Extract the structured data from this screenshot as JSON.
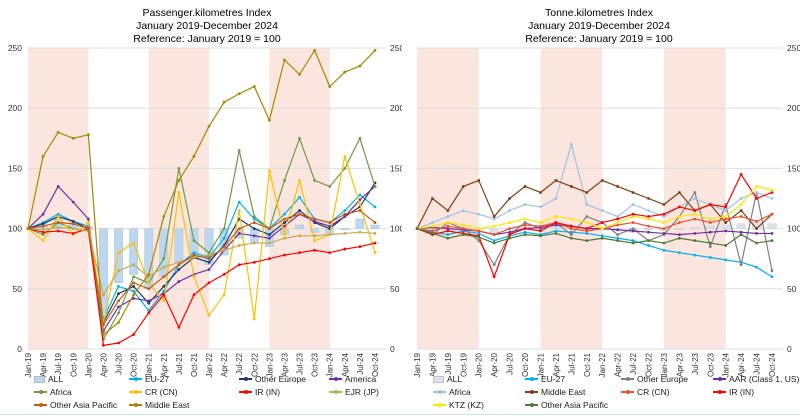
{
  "page": {
    "background": "#FFFFFF"
  },
  "charts": [
    {
      "id": "passenger",
      "title_lines": [
        "Passenger.kilometres Index",
        "January 2019-December 2024",
        "Reference: January 2019 = 100"
      ],
      "chart_data": {
        "type": "line",
        "title": "Passenger.kilometres Index",
        "subtitle": "January 2019-December 2024",
        "reference_note": "Reference: January 2019 = 100",
        "x_tick_labels": [
          "Jan-19",
          "Apr-19",
          "Jul-19",
          "Oct-19",
          "Jan-20",
          "Apr-20",
          "Jul-20",
          "Oct-20",
          "Jan-21",
          "Apr-21",
          "Jul-21",
          "Oct-21",
          "Jan-22",
          "Apr-22",
          "Jul-22",
          "Oct-22",
          "Jan-23",
          "Apr-23",
          "Jul-23",
          "Oct-23",
          "Jan-24",
          "Apr-24",
          "Jul-24",
          "Oct-24"
        ],
        "ylim": [
          0,
          250
        ],
        "yticks": [
          0,
          50,
          100,
          150,
          200,
          250
        ],
        "grid": true,
        "y_axis_label_sides": [
          "left",
          "right"
        ],
        "legend_position": "bottom",
        "shaded_bands": {
          "color": "#FAE6DE",
          "tick_ranges": [
            [
              0,
              4
            ],
            [
              8,
              12
            ],
            [
              16,
              20
            ]
          ],
          "note": "calendar years 2019, 2021, 2023 shaded"
        },
        "baseline": 100,
        "series": [
          {
            "name": "ALL",
            "type": "bar_from_100",
            "color": "#BDD7EE",
            "stroke": "#A6C5E4",
            "values": [
              100,
              104,
              108,
              105,
              102,
              30,
              55,
              62,
              50,
              60,
              72,
              75,
              70,
              78,
              92,
              88,
              85,
              95,
              103,
              97,
              95,
              100,
              108,
              103
            ]
          },
          {
            "name": "EU-27",
            "type": "line",
            "color": "#00B0F0",
            "values": [
              100,
              105,
              112,
              106,
              102,
              25,
              52,
              48,
              32,
              48,
              70,
              80,
              76,
              92,
              122,
              108,
              100,
              112,
              126,
              108,
              105,
              115,
              128,
              118
            ]
          },
          {
            "name": "Other Europe",
            "type": "line",
            "color": "#1F3864",
            "values": [
              100,
              104,
              110,
              106,
              100,
              22,
              46,
              52,
              38,
              52,
              66,
              76,
              72,
              86,
              108,
              100,
              95,
              105,
              115,
              105,
              100,
              110,
              118,
              138
            ]
          },
          {
            "name": "America",
            "type": "line",
            "color": "#7030A0",
            "values": [
              100,
              112,
              135,
              122,
              108,
              15,
              35,
              42,
              40,
              46,
              56,
              62,
              66,
              82,
              96,
              94,
              92,
              102,
              112,
              106,
              102,
              110,
              124,
              135
            ]
          },
          {
            "name": "Africa",
            "type": "line",
            "color": "#6E9B45",
            "values": [
              100,
              95,
              105,
              100,
              98,
              8,
              30,
              60,
              55,
              75,
              150,
              90,
              80,
              100,
              165,
              110,
              100,
              140,
              175,
              140,
              135,
              150,
              175,
              135
            ]
          },
          {
            "name": "CR (CN)",
            "type": "line",
            "color": "#FFC000",
            "values": [
              100,
              90,
              110,
              95,
              105,
              22,
              80,
              88,
              55,
              40,
              130,
              60,
              28,
              45,
              115,
              25,
              148,
              95,
              140,
              90,
              95,
              160,
              120,
              80
            ]
          },
          {
            "name": "IR (IN)",
            "type": "line",
            "color": "#FF0000",
            "values": [
              100,
              97,
              98,
              96,
              100,
              3,
              5,
              12,
              30,
              45,
              18,
              45,
              55,
              62,
              70,
              72,
              75,
              78,
              80,
              82,
              80,
              83,
              85,
              88
            ]
          },
          {
            "name": "EJR (JP)",
            "type": "line",
            "color": "#C9A94E",
            "values": [
              100,
              99,
              101,
              100,
              98,
              45,
              65,
              70,
              60,
              68,
              72,
              76,
              78,
              82,
              86,
              88,
              88,
              92,
              94,
              94,
              95,
              96,
              97,
              96
            ]
          },
          {
            "name": "Other Asia Pacific",
            "type": "line",
            "color": "#C55A11",
            "values": [
              100,
              102,
              105,
              104,
              100,
              20,
              40,
              55,
              50,
              60,
              70,
              78,
              75,
              85,
              100,
              105,
              100,
              108,
              112,
              108,
              105,
              112,
              115,
              105
            ]
          },
          {
            "name": "Middle East",
            "type": "line",
            "color": "#A98600",
            "values": [
              100,
              160,
              180,
              175,
              178,
              12,
              22,
              45,
              62,
              110,
              140,
              160,
              185,
              205,
              212,
              218,
              190,
              240,
              228,
              248,
              218,
              230,
              235,
              248
            ]
          }
        ]
      }
    },
    {
      "id": "tonne",
      "title_lines": [
        "Tonne.kilometres Index",
        "January 2019-December 2024",
        "Reference: January 2019 = 100"
      ],
      "chart_data": {
        "type": "line",
        "title": "Tonne.kilometres Index",
        "subtitle": "January 2019-December 2024",
        "reference_note": "Reference: January 2019 = 100",
        "x_tick_labels": [
          "Jan-19",
          "Apr-19",
          "Jul-19",
          "Oct-19",
          "Jan-20",
          "Apr-20",
          "Jul-20",
          "Oct-20",
          "Jan-21",
          "Apr-21",
          "Jul-21",
          "Oct-21",
          "Jan-22",
          "Apr-22",
          "Jul-22",
          "Oct-22",
          "Jan-23",
          "Apr-23",
          "Jul-23",
          "Oct-23",
          "Jan-24",
          "Apr-24",
          "Jul-24",
          "Oct-24"
        ],
        "ylim": [
          0,
          250
        ],
        "yticks": [
          0,
          50,
          100,
          150,
          200,
          250
        ],
        "grid": true,
        "y_axis_label_sides": [
          "right"
        ],
        "legend_position": "bottom",
        "shaded_bands": {
          "color": "#FAE6DE",
          "tick_ranges": [
            [
              0,
              4
            ],
            [
              8,
              12
            ],
            [
              16,
              20
            ]
          ],
          "note": "calendar years 2019, 2021, 2023 shaded"
        },
        "baseline": 100,
        "series": [
          {
            "name": "ALL",
            "type": "bar_from_100",
            "color": "#DCE2EA",
            "stroke": "#C6CED9",
            "values": [
              100,
              100,
              99,
              101,
              100,
              96,
              99,
              102,
              100,
              102,
              103,
              102,
              100,
              98,
              97,
              99,
              98,
              100,
              101,
              102,
              103,
              104,
              105,
              104
            ]
          },
          {
            "name": "EU-27",
            "type": "line",
            "color": "#00B0F0",
            "values": [
              100,
              97,
              95,
              98,
              96,
              90,
              94,
              97,
              95,
              98,
              97,
              96,
              94,
              92,
              90,
              86,
              82,
              80,
              78,
              76,
              74,
              72,
              68,
              60
            ]
          },
          {
            "name": "Other Europe",
            "type": "line",
            "color": "#808080",
            "values": [
              100,
              95,
              105,
              100,
              90,
              70,
              95,
              105,
              100,
              105,
              95,
              110,
              105,
              95,
              100,
              90,
              95,
              110,
              130,
              85,
              120,
              70,
              130,
              65
            ]
          },
          {
            "name": "AAR (Class 1, US)",
            "type": "line",
            "color": "#7030A0",
            "values": [
              100,
              101,
              100,
              99,
              98,
              95,
              97,
              100,
              101,
              103,
              102,
              100,
              100,
              99,
              98,
              97,
              96,
              95,
              96,
              97,
              98,
              97,
              96,
              96
            ]
          },
          {
            "name": "Africa",
            "type": "line",
            "color": "#9DC3E6",
            "values": [
              100,
              105,
              110,
              115,
              112,
              108,
              115,
              120,
              118,
              125,
              170,
              120,
              115,
              110,
              120,
              115,
              110,
              118,
              125,
              120,
              115,
              125,
              130,
              125
            ]
          },
          {
            "name": "Middle East",
            "type": "line",
            "color": "#843C0C",
            "values": [
              100,
              125,
              115,
              135,
              140,
              110,
              125,
              135,
              130,
              140,
              135,
              130,
              140,
              135,
              130,
              125,
              120,
              130,
              115,
              120,
              105,
              115,
              100,
              112
            ]
          },
          {
            "name": "CR (CN)",
            "type": "line",
            "color": "#F0512D",
            "values": [
              100,
              98,
              102,
              100,
              98,
              95,
              100,
              103,
              102,
              105,
              100,
              98,
              100,
              103,
              105,
              102,
              100,
              105,
              108,
              105,
              108,
              110,
              106,
              112
            ]
          },
          {
            "name": "IR (IN)",
            "type": "line",
            "color": "#FF0000",
            "values": [
              100,
              95,
              98,
              96,
              94,
              60,
              95,
              100,
              98,
              105,
              102,
              100,
              105,
              108,
              112,
              110,
              112,
              118,
              115,
              120,
              118,
              145,
              125,
              130
            ]
          },
          {
            "name": "KTZ (KZ)",
            "type": "line",
            "color": "#FFE500",
            "values": [
              100,
              102,
              105,
              103,
              100,
              102,
              105,
              108,
              105,
              110,
              108,
              105,
              100,
              105,
              110,
              108,
              105,
              110,
              112,
              108,
              110,
              120,
              135,
              132
            ]
          },
          {
            "name": "Other Asia Pacific",
            "type": "line",
            "color": "#4E7A35",
            "values": [
              100,
              96,
              92,
              95,
              93,
              88,
              92,
              95,
              94,
              96,
              92,
              90,
              92,
              90,
              88,
              90,
              88,
              92,
              90,
              88,
              86,
              95,
              88,
              90
            ]
          }
        ]
      }
    }
  ]
}
